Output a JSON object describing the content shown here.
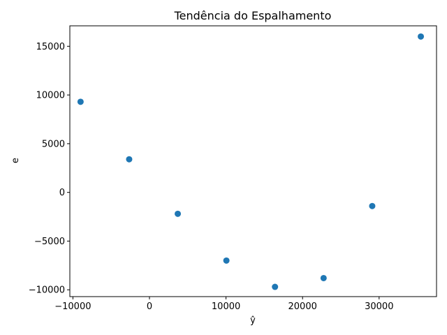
{
  "chart_data": {
    "type": "scatter",
    "title": "Tendência do Espalhamento",
    "xlabel": "ŷ",
    "ylabel": "e",
    "xlim": [
      -10400,
      37500
    ],
    "ylim": [
      -10700,
      17100
    ],
    "xticks": [
      -10000,
      0,
      10000,
      20000,
      30000
    ],
    "xtick_labels": [
      "−10000",
      "0",
      "10000",
      "20000",
      "30000"
    ],
    "yticks": [
      -10000,
      -5000,
      0,
      5000,
      10000,
      15000
    ],
    "ytick_labels": [
      "−10000",
      "−5000",
      "0",
      "5000",
      "10000",
      "15000"
    ],
    "grid": false,
    "series": [
      {
        "color": "#1f77b4",
        "x": [
          -9000,
          -2650,
          3700,
          10050,
          16400,
          22750,
          29100,
          35450
        ],
        "y": [
          9300,
          3400,
          -2200,
          -7000,
          -9700,
          -8800,
          -1400,
          16000
        ]
      }
    ]
  }
}
